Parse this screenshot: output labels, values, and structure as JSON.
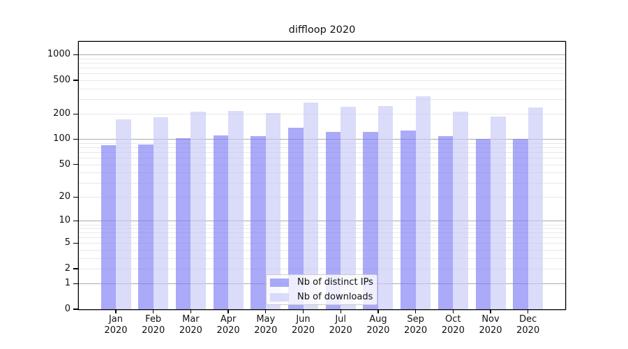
{
  "page": {
    "background_color": "#ffffff"
  },
  "chart_data": {
    "type": "bar",
    "title": "diffloop 2020",
    "categories": [
      "Jan",
      "Feb",
      "Mar",
      "Apr",
      "May",
      "Jun",
      "Jul",
      "Aug",
      "Sep",
      "Oct",
      "Nov",
      "Dec"
    ],
    "x_year": "2020",
    "series": [
      {
        "name": "Nb of distinct IPs",
        "color": "rgba(124,124,245,0.65)",
        "values": [
          85,
          86,
          103,
          112,
          109,
          136,
          122,
          122,
          127,
          108,
          100,
          101
        ]
      },
      {
        "name": "Nb of downloads",
        "color": "rgba(200,200,248,0.65)",
        "values": [
          172,
          181,
          214,
          217,
          206,
          272,
          241,
          246,
          322,
          214,
          187,
          240
        ]
      }
    ],
    "y_scale": "log1p",
    "y_ticks": [
      0,
      1,
      2,
      5,
      10,
      20,
      50,
      100,
      200,
      500,
      1000
    ],
    "y_major_gridlines": [
      1,
      10,
      100,
      1000
    ],
    "y_minor_gridlines": [
      2,
      3,
      4,
      5,
      6,
      7,
      8,
      9,
      20,
      30,
      40,
      50,
      60,
      70,
      80,
      90,
      200,
      300,
      400,
      500,
      600,
      700,
      800,
      900
    ],
    "ylim": [
      0,
      1400
    ],
    "grid": true,
    "legend_position": "lower center"
  },
  "colors": {
    "bar_distinct_ips": "rgba(124,124,245,0.65)",
    "bar_downloads": "rgba(200,200,248,0.65)",
    "grid_major": "#ababab",
    "grid_minor": "#e8e8e8",
    "spine": "#000000",
    "legend_border": "#cccccc",
    "text": "#111111"
  }
}
